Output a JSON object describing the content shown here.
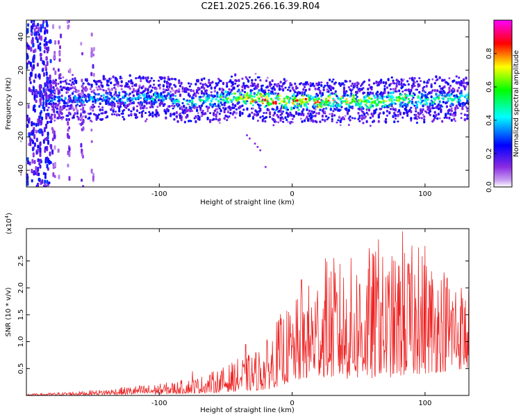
{
  "title": "C2E1.2025.266.16.39.R04",
  "chart_data": [
    {
      "type": "heatmap",
      "title": "C2E1.2025.266.16.39.R04",
      "xlabel": "Height of straight line (km)",
      "ylabel": "Frequency (Hz)",
      "xlim": [
        -200,
        133
      ],
      "ylim": [
        -50,
        50
      ],
      "x_ticks": [
        -100,
        0,
        100
      ],
      "y_ticks": [
        -40,
        -20,
        0,
        20,
        40
      ],
      "x_tick_labels": [
        "-100",
        "0",
        "100"
      ],
      "y_tick_labels": [
        "-40",
        "-20",
        "0",
        "20",
        "40"
      ],
      "colorbar": {
        "label": "Normalized spectral amplitude",
        "range": [
          0,
          1
        ],
        "ticks": [
          0.0,
          0.2,
          0.4,
          0.6,
          0.8
        ],
        "tick_labels": [
          "0.0",
          "0.2",
          "0.4",
          "0.6",
          "0.8"
        ],
        "colors": [
          "#ffffff",
          "#a020f0",
          "#0000ff",
          "#00ffff",
          "#00ff00",
          "#ffff00",
          "#ff0000",
          "#ff00ff"
        ]
      },
      "band_center_hz": [
        [
          -180,
          2
        ],
        [
          -140,
          3
        ],
        [
          -100,
          4
        ],
        [
          -80,
          1
        ],
        [
          -60,
          2
        ],
        [
          -40,
          4
        ],
        [
          -20,
          2
        ],
        [
          0,
          1
        ],
        [
          20,
          1
        ],
        [
          40,
          2
        ],
        [
          60,
          1
        ],
        [
          80,
          2
        ],
        [
          100,
          2
        ],
        [
          120,
          3
        ],
        [
          133,
          3
        ]
      ],
      "band_peak_amplitude": [
        [
          -180,
          0.35
        ],
        [
          -140,
          0.4
        ],
        [
          -100,
          0.45
        ],
        [
          -60,
          0.5
        ],
        [
          -35,
          0.8
        ],
        [
          -20,
          0.9
        ],
        [
          0,
          0.85
        ],
        [
          20,
          0.85
        ],
        [
          40,
          0.75
        ],
        [
          60,
          0.7
        ],
        [
          80,
          0.65
        ],
        [
          100,
          0.55
        ],
        [
          133,
          0.5
        ]
      ]
    },
    {
      "type": "line",
      "xlabel": "Height of straight line (km)",
      "ylabel": "SNR (10 * v/v)",
      "y_scale_label": "(x10",
      "y_scale_exponent": "4",
      "y_scale_suffix": ")",
      "xlim": [
        -200,
        133
      ],
      "ylim": [
        0,
        3.1
      ],
      "x_ticks": [
        -100,
        0,
        100
      ],
      "y_ticks": [
        0.5,
        1.0,
        1.5,
        2.0,
        2.5
      ],
      "x_tick_labels": [
        "-100",
        "0",
        "100"
      ],
      "y_tick_labels": [
        "0.5",
        "1.0",
        "1.5",
        "2.0",
        "2.5"
      ],
      "color": "#ee2222",
      "envelope_peak": [
        [
          -200,
          0.03
        ],
        [
          -180,
          0.05
        ],
        [
          -160,
          0.08
        ],
        [
          -140,
          0.12
        ],
        [
          -120,
          0.18
        ],
        [
          -100,
          0.22
        ],
        [
          -80,
          0.3
        ],
        [
          -70,
          0.35
        ],
        [
          -60,
          0.45
        ],
        [
          -50,
          0.55
        ],
        [
          -40,
          0.7
        ],
        [
          -30,
          0.8
        ],
        [
          -20,
          1.0
        ],
        [
          -10,
          1.5
        ],
        [
          0,
          1.7
        ],
        [
          10,
          2.0
        ],
        [
          20,
          2.4
        ],
        [
          30,
          2.6
        ],
        [
          40,
          2.5
        ],
        [
          50,
          2.7
        ],
        [
          60,
          2.8
        ],
        [
          70,
          2.6
        ],
        [
          80,
          2.7
        ],
        [
          90,
          2.8
        ],
        [
          100,
          2.7
        ],
        [
          110,
          2.5
        ],
        [
          120,
          2.4
        ],
        [
          133,
          2.0
        ]
      ],
      "envelope_base": [
        [
          -200,
          0.0
        ],
        [
          -100,
          0.02
        ],
        [
          -60,
          0.05
        ],
        [
          -20,
          0.1
        ],
        [
          0,
          0.25
        ],
        [
          20,
          0.35
        ],
        [
          40,
          0.3
        ],
        [
          60,
          0.3
        ],
        [
          80,
          0.35
        ],
        [
          100,
          0.4
        ],
        [
          133,
          0.5
        ]
      ],
      "notable_peaks": [
        [
          -75,
          0.45
        ],
        [
          -35,
          0.95
        ],
        [
          7,
          2.15
        ],
        [
          25,
          2.55
        ],
        [
          65,
          2.9
        ],
        [
          83,
          3.05
        ],
        [
          95,
          2.75
        ],
        [
          100,
          2.78
        ]
      ]
    }
  ]
}
